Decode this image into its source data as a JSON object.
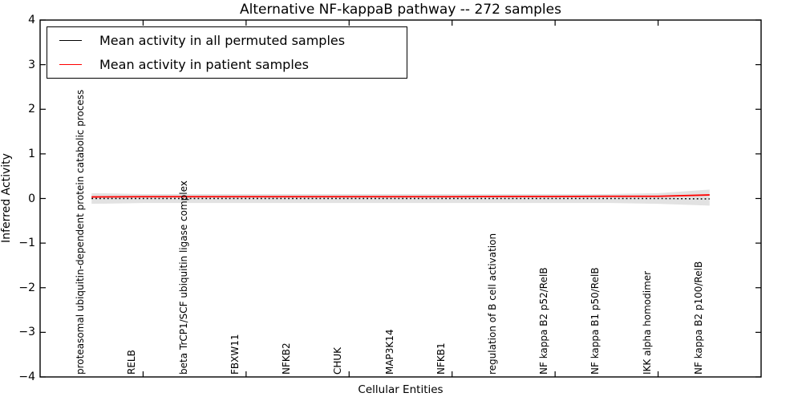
{
  "figure": {
    "title": "Alternative NF-kappaB pathway -- 272 samples",
    "xlabel": "Cellular Entities",
    "ylabel": "Inferred Activity"
  },
  "legend": {
    "items": [
      {
        "label": "Mean activity in all permuted samples",
        "color": "#000000"
      },
      {
        "label": "Mean activity in patient samples",
        "color": "#ff0000"
      }
    ]
  },
  "chart_data": {
    "type": "line",
    "title": "Alternative NF-kappaB pathway -- 272 samples",
    "xlabel": "Cellular Entities",
    "ylabel": "Inferred Activity",
    "ylim": [
      -4,
      4
    ],
    "yticks": [
      4,
      3,
      2,
      1,
      0,
      -1,
      -2,
      -3,
      -4
    ],
    "xlim": [
      -1,
      13
    ],
    "grid": false,
    "legend_position": "upper left",
    "categories": [
      "proteasomal ubiquitin-dependent protein catabolic process",
      "RELB",
      "beta TrCP1/SCF ubiquitin ligase complex",
      "FBXW11",
      "NFKB2",
      "CHUK",
      "MAP3K14",
      "NFKB1",
      "regulation of B cell activation",
      "NF kappa B2 p52/RelB",
      "NF kappa B1 p50/RelB",
      "IKK alpha homodimer",
      "NF kappa B2 p100/RelB"
    ],
    "series": [
      {
        "name": "Mean activity in all permuted samples",
        "color": "#000000",
        "style": "dotted",
        "values": [
          0.0,
          0.0,
          0.0,
          0.0,
          0.0,
          0.0,
          0.0,
          0.0,
          0.0,
          0.0,
          0.0,
          0.0,
          -0.01
        ]
      },
      {
        "name": "Mean activity in patient samples",
        "color": "#ff0000",
        "style": "solid",
        "values": [
          0.035,
          0.04,
          0.04,
          0.04,
          0.04,
          0.04,
          0.04,
          0.04,
          0.045,
          0.045,
          0.05,
          0.05,
          0.08
        ]
      }
    ],
    "band": {
      "name": "permuted samples spread",
      "color": "#e2e2e2",
      "upper": [
        0.12,
        0.1,
        0.1,
        0.1,
        0.1,
        0.1,
        0.1,
        0.1,
        0.1,
        0.1,
        0.1,
        0.12,
        0.2
      ],
      "lower": [
        -0.12,
        -0.1,
        -0.1,
        -0.1,
        -0.1,
        -0.1,
        -0.1,
        -0.1,
        -0.1,
        -0.1,
        -0.1,
        -0.12,
        -0.16
      ]
    }
  }
}
